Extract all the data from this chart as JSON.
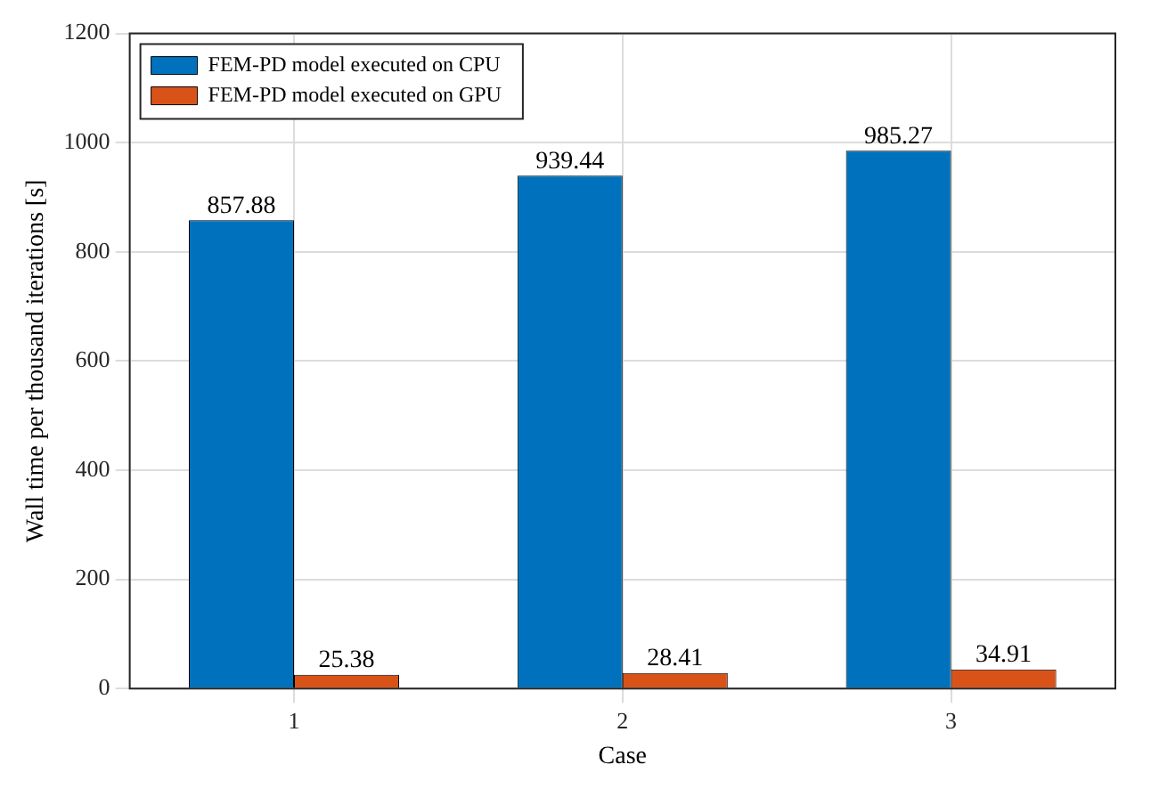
{
  "chart_data": {
    "type": "bar",
    "xlabel": "Case",
    "ylabel": "Wall time per thousand iterations [s]",
    "categories": [
      "1",
      "2",
      "3"
    ],
    "series": [
      {
        "name": "FEM-PD model executed on CPU",
        "color": "#0072bd",
        "values": [
          857.88,
          939.44,
          985.27
        ]
      },
      {
        "name": "FEM-PD model executed on GPU",
        "color": "#d95319",
        "values": [
          25.38,
          28.41,
          34.91
        ]
      }
    ],
    "ylim": [
      0,
      1200
    ],
    "yticks": [
      0,
      200,
      400,
      600,
      800,
      1000,
      1200
    ],
    "grid": true,
    "legend": "top left",
    "data_labels": true
  }
}
